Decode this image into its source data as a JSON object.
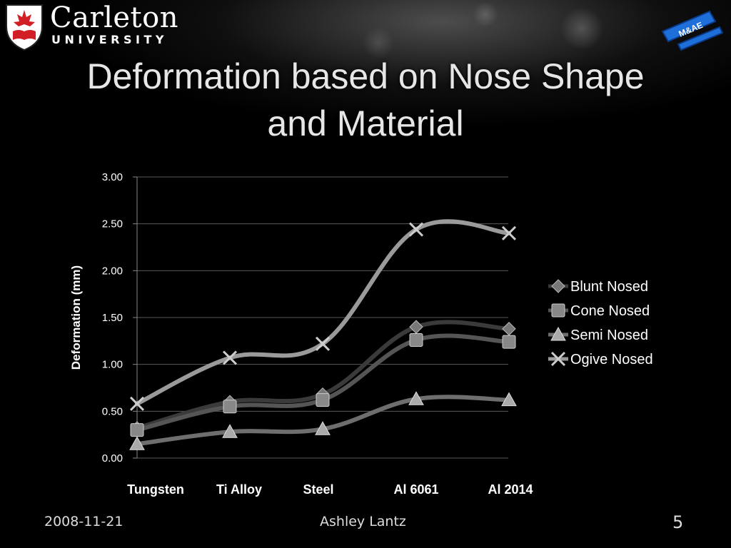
{
  "logo": {
    "line1": "Carleton",
    "line2": "UNIVERSITY"
  },
  "badge": {
    "text": "M&AE"
  },
  "slide": {
    "title_line1": "Deformation based on Nose Shape",
    "title_line2": "and Material"
  },
  "footer": {
    "date": "2008-11-21",
    "author": "Ashley Lantz",
    "page": "5"
  },
  "chart_data": {
    "type": "line",
    "title": "",
    "xlabel": "",
    "ylabel": "Deformation (mm)",
    "categories": [
      "Tungsten",
      "Ti Alloy",
      "Steel",
      "Al 6061",
      "Al 2014"
    ],
    "ylim": [
      0,
      3
    ],
    "yticks": [
      "0.00",
      "0.50",
      "1.00",
      "1.50",
      "2.00",
      "2.50",
      "3.00"
    ],
    "grid": true,
    "legend_position": "right",
    "series": [
      {
        "name": "Blunt Nosed",
        "marker": "diamond",
        "color": "#3a3a3a",
        "values": [
          0.32,
          0.6,
          0.68,
          1.4,
          1.38
        ]
      },
      {
        "name": "Cone Nosed",
        "marker": "square",
        "color": "#555555",
        "values": [
          0.3,
          0.55,
          0.62,
          1.26,
          1.24
        ]
      },
      {
        "name": "Semi Nosed",
        "marker": "triangle",
        "color": "#6e6e6e",
        "values": [
          0.15,
          0.28,
          0.31,
          0.63,
          0.62
        ]
      },
      {
        "name": "Ogive Nosed",
        "marker": "x",
        "color": "#9a9a9a",
        "values": [
          0.58,
          1.07,
          1.22,
          2.44,
          2.4
        ]
      }
    ]
  }
}
